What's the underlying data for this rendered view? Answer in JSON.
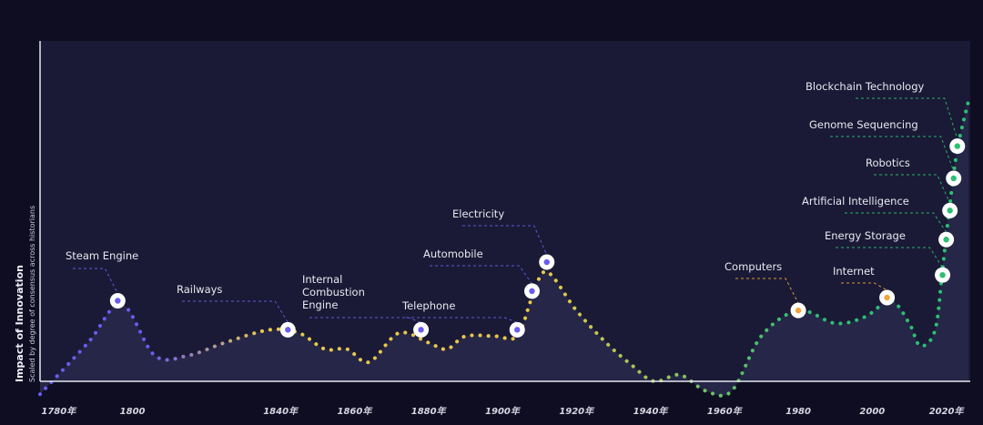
{
  "chart_data": {
    "type": "line",
    "title": "",
    "ylabel": "Impact of Innovation",
    "ylabel_sub": "Scaled by degree of consensus across historians",
    "xlabel": "",
    "xlim": [
      1775,
      2026
    ],
    "ylim": [
      0,
      100
    ],
    "x_ticks": [
      {
        "value": 1780,
        "label": "1780年"
      },
      {
        "value": 1800,
        "label": "1800"
      },
      {
        "value": 1840,
        "label": "1840年"
      },
      {
        "value": 1860,
        "label": "1860年"
      },
      {
        "value": 1880,
        "label": "1880年"
      },
      {
        "value": 1900,
        "label": "1900年"
      },
      {
        "value": 1920,
        "label": "1920年"
      },
      {
        "value": 1940,
        "label": "1940年"
      },
      {
        "value": 1960,
        "label": "1960年"
      },
      {
        "value": 1980,
        "label": "1980"
      },
      {
        "value": 2000,
        "label": "2000"
      },
      {
        "value": 2020,
        "label": "2020年"
      }
    ],
    "curve": [
      {
        "x": 1775,
        "y": -4
      },
      {
        "x": 1788,
        "y": 12
      },
      {
        "x": 1797,
        "y": 24
      },
      {
        "x": 1806,
        "y": 8
      },
      {
        "x": 1815,
        "y": 8
      },
      {
        "x": 1825,
        "y": 12
      },
      {
        "x": 1837,
        "y": 16
      },
      {
        "x": 1845,
        "y": 15
      },
      {
        "x": 1852,
        "y": 10
      },
      {
        "x": 1858,
        "y": 10
      },
      {
        "x": 1864,
        "y": 6
      },
      {
        "x": 1872,
        "y": 15
      },
      {
        "x": 1880,
        "y": 12
      },
      {
        "x": 1885,
        "y": 10
      },
      {
        "x": 1890,
        "y": 14
      },
      {
        "x": 1898,
        "y": 14
      },
      {
        "x": 1904,
        "y": 14
      },
      {
        "x": 1908,
        "y": 26
      },
      {
        "x": 1912,
        "y": 34
      },
      {
        "x": 1920,
        "y": 22
      },
      {
        "x": 1928,
        "y": 12
      },
      {
        "x": 1935,
        "y": 5
      },
      {
        "x": 1941,
        "y": 0
      },
      {
        "x": 1948,
        "y": 2
      },
      {
        "x": 1955,
        "y": -3
      },
      {
        "x": 1962,
        "y": -3
      },
      {
        "x": 1970,
        "y": 14
      },
      {
        "x": 1980,
        "y": 22
      },
      {
        "x": 1990,
        "y": 18
      },
      {
        "x": 1998,
        "y": 20
      },
      {
        "x": 2005,
        "y": 25
      },
      {
        "x": 2010,
        "y": 18
      },
      {
        "x": 2013,
        "y": 11
      },
      {
        "x": 2017,
        "y": 16
      },
      {
        "x": 2019,
        "y": 35
      },
      {
        "x": 2021,
        "y": 55
      },
      {
        "x": 2023,
        "y": 72
      },
      {
        "x": 2026,
        "y": 87
      }
    ],
    "milestones": [
      {
        "label": "Steam Engine",
        "x": 1796,
        "y": 25,
        "color": "#6a5cf0",
        "side": "left"
      },
      {
        "label": "Railways",
        "x": 1842,
        "y": 16,
        "color": "#6a5cf0",
        "side": "left"
      },
      {
        "label": "Internal Combustion Engine",
        "lines": [
          "Internal",
          "Combustion",
          "Engine"
        ],
        "x": 1878,
        "y": 16,
        "color": "#6a5cf0",
        "side": "left"
      },
      {
        "label": "Telephone",
        "x": 1904,
        "y": 16,
        "color": "#6a5cf0",
        "side": "left"
      },
      {
        "label": "Automobile",
        "x": 1908,
        "y": 28,
        "color": "#6a5cf0",
        "side": "left"
      },
      {
        "label": "Electricity",
        "x": 1912,
        "y": 37,
        "color": "#6a5cf0",
        "side": "left"
      },
      {
        "label": "Computers",
        "x": 1980,
        "y": 22,
        "color": "#f0a43c",
        "side": "left"
      },
      {
        "label": "Internet",
        "x": 2004,
        "y": 26,
        "color": "#f0a43c",
        "side": "left"
      },
      {
        "label": "Energy Storage",
        "x": 2019,
        "y": 33,
        "color": "#2dbf73",
        "side": "left"
      },
      {
        "label": "Artificial Intelligence",
        "x": 2020,
        "y": 44,
        "color": "#2dbf73",
        "side": "left"
      },
      {
        "label": "Robotics",
        "x": 2021,
        "y": 53,
        "color": "#2dbf73",
        "side": "left"
      },
      {
        "label": "Genome Sequencing",
        "x": 2022,
        "y": 63,
        "color": "#2dbf73",
        "side": "left"
      },
      {
        "label": "Blockchain Technology",
        "x": 2023,
        "y": 73,
        "color": "#2dbf73",
        "side": "left"
      }
    ],
    "grid": false,
    "legend": "none",
    "colors": {
      "background": "#0e0d22",
      "plot_area": "#1a1a36",
      "fill": "#262648",
      "axis": "#e6e6ee",
      "era_early": "#6a5cf0",
      "era_middle": "#e8c84a",
      "era_late": "#2dbf73"
    }
  }
}
